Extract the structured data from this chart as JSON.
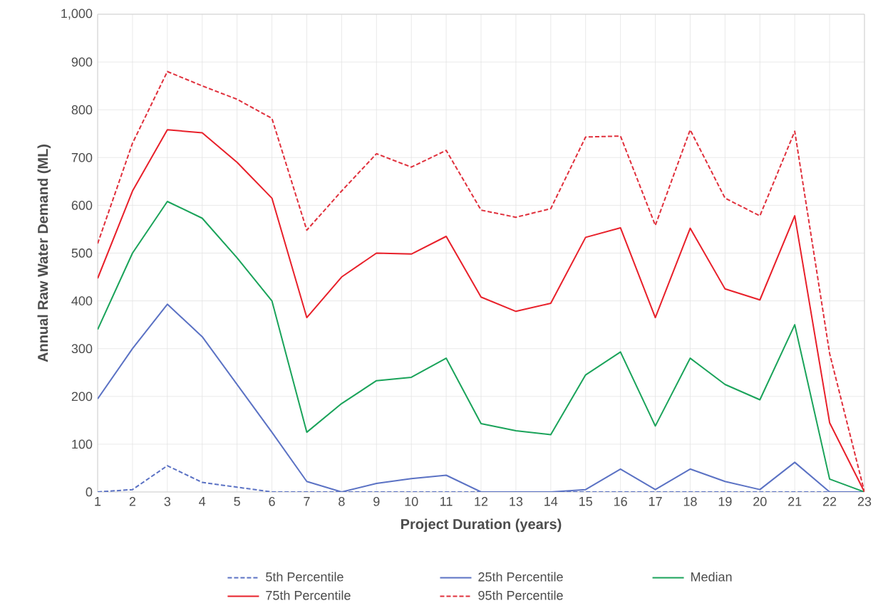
{
  "chart_data": {
    "type": "line",
    "xlabel": "Project Duration (years)",
    "ylabel": "Annual Raw Water Demand (ML)",
    "categories": [
      "1",
      "2",
      "3",
      "4",
      "5",
      "6",
      "7",
      "8",
      "9",
      "10",
      "11",
      "12",
      "13",
      "14",
      "15",
      "16",
      "17",
      "18",
      "19",
      "20",
      "21",
      "22",
      "23"
    ],
    "ylim": [
      0,
      1000
    ],
    "yticks": [
      0,
      100,
      200,
      300,
      400,
      500,
      600,
      700,
      800,
      900,
      {
        "value": 1000,
        "label": "1,000"
      }
    ],
    "grid": true,
    "legend": "bottom",
    "marker": "none",
    "series": [
      {
        "name": "5th Percentile",
        "color": "#5b72c4",
        "line_style": "dashed",
        "values": [
          0,
          5,
          55,
          20,
          10,
          0,
          0,
          0,
          0,
          0,
          0,
          0,
          0,
          0,
          0,
          0,
          0,
          0,
          0,
          0,
          0,
          0,
          0
        ]
      },
      {
        "name": "25th Percentile",
        "color": "#5b72c4",
        "line_style": "solid",
        "values": [
          195,
          300,
          393,
          325,
          225,
          125,
          22,
          0,
          18,
          28,
          35,
          0,
          0,
          0,
          5,
          48,
          5,
          48,
          22,
          5,
          62,
          0,
          0
        ]
      },
      {
        "name": "Median",
        "color": "#1aa35a",
        "line_style": "solid",
        "values": [
          340,
          500,
          608,
          573,
          490,
          400,
          125,
          185,
          233,
          240,
          280,
          143,
          128,
          120,
          245,
          293,
          138,
          280,
          225,
          193,
          350,
          27,
          0
        ]
      },
      {
        "name": "75th Percentile",
        "color": "#e8202a",
        "line_style": "solid",
        "values": [
          447,
          630,
          758,
          752,
          690,
          615,
          365,
          450,
          500,
          498,
          535,
          408,
          378,
          395,
          533,
          553,
          365,
          552,
          425,
          402,
          578,
          145,
          0
        ]
      },
      {
        "name": "95th Percentile",
        "color": "#e0303c",
        "line_style": "dashed",
        "values": [
          520,
          730,
          880,
          850,
          822,
          782,
          548,
          630,
          708,
          680,
          715,
          590,
          575,
          593,
          743,
          745,
          558,
          758,
          615,
          578,
          755,
          290,
          0
        ]
      }
    ]
  }
}
